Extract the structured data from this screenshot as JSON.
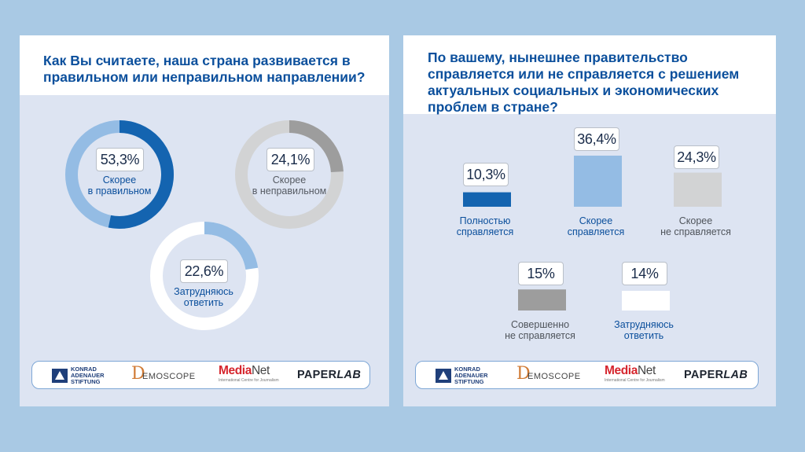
{
  "colors": {
    "background": "#a9c9e4",
    "panel": "#dde4f2",
    "title_blue": "#0b4f9c",
    "dark_blue": "#1464b0",
    "light_blue": "#94bce4",
    "gray": "#9d9d9d",
    "light_gray": "#d2d3d4",
    "white": "#ffffff"
  },
  "left": {
    "title": "Как Вы считаете, наша страна развивается в правильном или неправильном направлении?"
  },
  "right": {
    "title": "По вашему, нынешнее правительство справляется или не справляется с решением актуальных социальных и экономических проблем в стране?"
  },
  "chart_data": [
    {
      "type": "pie",
      "variant": "donut",
      "title": "Как Вы считаете, наша страна развивается в правильном или неправильном направлении?",
      "slices": [
        {
          "label": "Скорее в правильном",
          "label_lines": [
            "Скорее",
            "в правильном"
          ],
          "value": 53.3,
          "display": "53,3%"
        },
        {
          "label": "Скорее в неправильном",
          "label_lines": [
            "Скорее",
            "в неправильном"
          ],
          "value": 24.1,
          "display": "24,1%"
        },
        {
          "label": "Затрудняюсь ответить",
          "label_lines": [
            "Затрудняюсь",
            "ответить"
          ],
          "value": 22.6,
          "display": "22,6%"
        }
      ]
    },
    {
      "type": "bar",
      "title": "По вашему, нынешнее правительство справляется или не справляется с решением актуальных социальных и экономических проблем в стране?",
      "categories": [
        "Полностью справляется",
        "Скорее справляется",
        "Скорее не справляется",
        "Совершенно не справляется",
        "Затрудняюсь ответить"
      ],
      "category_lines": [
        [
          "Полностью",
          "справляется"
        ],
        [
          "Скорее",
          "справляется"
        ],
        [
          "Скорее",
          "не справляется"
        ],
        [
          "Совершенно",
          "не справляется"
        ],
        [
          "Затрудняюсь",
          "ответить"
        ]
      ],
      "values": [
        10.3,
        36.4,
        24.3,
        15,
        14
      ],
      "value_labels": [
        "10,3%",
        "36,4%",
        "24,3%",
        "15%",
        "14%"
      ]
    }
  ],
  "logos": {
    "kas": [
      "KONRAD",
      "ADENAUER",
      "STIFTUNG"
    ],
    "demoscope_letter": "D",
    "demoscope_rest": "EMOSCOPE",
    "medianet_media": "Media",
    "medianet_net": "Net",
    "medianet_sub": "International Centre for Journalism",
    "paperlab_paper": "PAPER",
    "paperlab_lab": "LAB"
  }
}
